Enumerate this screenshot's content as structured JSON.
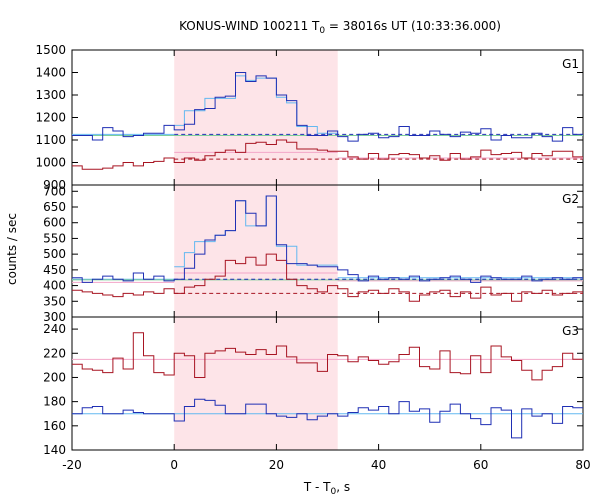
{
  "chart_data": {
    "type": "line",
    "title": "KONUS-WIND 100211 T",
    "title_sub": "0",
    "title_rest": " = 38016s UT (10:33:36.000)",
    "xlabel": "T - T",
    "xlabel_sub": "0",
    "xlabel_rest": ", s",
    "ylabel": "counts / sec",
    "xlim": [
      -20,
      80
    ],
    "x_ticks": [
      -20,
      0,
      20,
      40,
      60,
      80
    ],
    "shaded_interval": [
      0,
      32
    ],
    "colors": {
      "shade": "#fde4e8",
      "blue": "#1f2fb4",
      "lightblue": "#63b8f0",
      "red": "#a81422",
      "pink": "#f2a6c8",
      "green": "#7fcf9a"
    },
    "panels": [
      {
        "label": "G1",
        "ylim": [
          900,
          1500
        ],
        "y_ticks": [
          900,
          1000,
          1100,
          1200,
          1300,
          1400,
          1500
        ],
        "bin_edges": [
          -20,
          -18,
          -16,
          -14,
          -12,
          -10,
          -8,
          -6,
          -4,
          -2,
          0,
          2,
          4,
          6,
          8,
          10,
          12,
          14,
          16,
          18,
          20,
          22,
          24,
          26,
          28,
          30,
          32,
          34,
          36,
          38,
          40,
          42,
          44,
          46,
          48,
          50,
          52,
          54,
          56,
          58,
          60,
          62,
          64,
          66,
          68,
          70,
          72,
          74,
          76,
          78,
          80
        ],
        "high_y": [
          1120,
          1120,
          1100,
          1155,
          1140,
          1115,
          1120,
          1130,
          1130,
          1165,
          1145,
          1170,
          1235,
          1240,
          1290,
          1295,
          1400,
          1360,
          1385,
          1375,
          1300,
          1275,
          1165,
          1120,
          1120,
          1140,
          1115,
          1095,
          1125,
          1130,
          1110,
          1115,
          1160,
          1120,
          1120,
          1140,
          1125,
          1115,
          1135,
          1130,
          1150,
          1100,
          1120,
          1110,
          1110,
          1130,
          1115,
          1095,
          1155,
          1125
        ],
        "high_fit_segments": [
          [
            [
              -20,
              1125
            ],
            [
              0,
              1125
            ]
          ],
          [
            [
              0,
              1165
            ],
            [
              2,
              1165
            ],
            [
              2,
              1230
            ],
            [
              6,
              1230
            ],
            [
              6,
              1285
            ],
            [
              12,
              1285
            ],
            [
              12,
              1385
            ],
            [
              14,
              1385
            ],
            [
              14,
              1365
            ],
            [
              16,
              1365
            ],
            [
              16,
              1375
            ],
            [
              20,
              1375
            ],
            [
              20,
              1290
            ],
            [
              22,
              1290
            ],
            [
              22,
              1265
            ],
            [
              24,
              1265
            ],
            [
              24,
              1160
            ],
            [
              28,
              1160
            ],
            [
              28,
              1130
            ],
            [
              32,
              1130
            ]
          ],
          [
            [
              32,
              1120
            ],
            [
              80,
              1120
            ]
          ]
        ],
        "high_bg_dashed": 1125,
        "high_green_line": 1120,
        "low_y": [
          985,
          970,
          970,
          975,
          985,
          1000,
          985,
          1000,
          1005,
          1020,
          1000,
          1020,
          1010,
          1030,
          1045,
          1055,
          1045,
          1085,
          1090,
          1080,
          1100,
          1090,
          1060,
          1060,
          1055,
          1050,
          1050,
          1025,
          1015,
          1040,
          1015,
          1035,
          1040,
          1035,
          1020,
          1030,
          1010,
          1040,
          1015,
          1025,
          1055,
          1035,
          1040,
          1045,
          1020,
          1040,
          1030,
          1050,
          1050,
          1025
        ],
        "low_fit_segments": [
          [
            [
              0,
              1045
            ],
            [
              32,
              1045
            ]
          ],
          [
            [
              32,
              1020
            ],
            [
              80,
              1020
            ]
          ]
        ],
        "low_bg_dashed": 1015
      },
      {
        "label": "G2",
        "ylim": [
          300,
          720
        ],
        "y_ticks": [
          300,
          350,
          400,
          450,
          500,
          550,
          600,
          650,
          700
        ],
        "bin_edges": [
          -20,
          -18,
          -16,
          -14,
          -12,
          -10,
          -8,
          -6,
          -4,
          -2,
          0,
          2,
          4,
          6,
          8,
          10,
          12,
          14,
          16,
          18,
          20,
          22,
          24,
          26,
          28,
          30,
          32,
          34,
          36,
          38,
          40,
          42,
          44,
          46,
          48,
          50,
          52,
          54,
          56,
          58,
          60,
          62,
          64,
          66,
          68,
          70,
          72,
          74,
          76,
          78,
          80
        ],
        "high_y": [
          425,
          410,
          420,
          430,
          420,
          415,
          440,
          420,
          430,
          415,
          420,
          455,
          500,
          545,
          560,
          575,
          670,
          630,
          590,
          685,
          530,
          470,
          470,
          465,
          460,
          460,
          450,
          435,
          415,
          430,
          420,
          425,
          420,
          430,
          415,
          420,
          425,
          430,
          420,
          410,
          430,
          425,
          420,
          420,
          430,
          415,
          420,
          425,
          420,
          425
        ],
        "high_fit_segments": [
          [
            [
              -20,
              420
            ],
            [
              0,
              420
            ]
          ],
          [
            [
              0,
              460
            ],
            [
              2,
              460
            ],
            [
              2,
              505
            ],
            [
              4,
              505
            ],
            [
              4,
              540
            ],
            [
              8,
              540
            ],
            [
              8,
              560
            ],
            [
              10,
              560
            ],
            [
              10,
              575
            ],
            [
              12,
              575
            ],
            [
              12,
              670
            ],
            [
              14,
              670
            ],
            [
              14,
              590
            ],
            [
              18,
              590
            ],
            [
              18,
              685
            ],
            [
              20,
              685
            ],
            [
              20,
              525
            ],
            [
              24,
              525
            ],
            [
              24,
              465
            ],
            [
              32,
              465
            ]
          ],
          [
            [
              32,
              425
            ],
            [
              80,
              425
            ]
          ]
        ],
        "high_bg_dashed": 420,
        "high_green_line": 418,
        "low_y": [
          385,
          380,
          375,
          370,
          365,
          375,
          370,
          380,
          375,
          390,
          375,
          395,
          400,
          420,
          430,
          480,
          470,
          490,
          465,
          500,
          480,
          420,
          400,
          390,
          380,
          400,
          390,
          365,
          380,
          385,
          375,
          390,
          380,
          350,
          370,
          380,
          385,
          365,
          380,
          360,
          395,
          370,
          375,
          350,
          380,
          375,
          385,
          370,
          375,
          380
        ],
        "low_fit_segments": [
          [
            [
              -20,
              410
            ],
            [
              0,
              410
            ]
          ],
          [
            [
              0,
              440
            ],
            [
              32,
              440
            ]
          ],
          [
            [
              32,
              415
            ],
            [
              80,
              415
            ]
          ]
        ],
        "low_bg_dashed": 375
      },
      {
        "label": "G3",
        "ylim": [
          140,
          250
        ],
        "y_ticks": [
          140,
          160,
          180,
          200,
          220,
          240
        ],
        "bin_edges": [
          -20,
          -18,
          -16,
          -14,
          -12,
          -10,
          -8,
          -6,
          -4,
          -2,
          0,
          2,
          4,
          6,
          8,
          10,
          12,
          14,
          16,
          18,
          20,
          22,
          24,
          26,
          28,
          30,
          32,
          34,
          36,
          38,
          40,
          42,
          44,
          46,
          48,
          50,
          52,
          54,
          56,
          58,
          60,
          62,
          64,
          66,
          68,
          70,
          72,
          74,
          76,
          78,
          80
        ],
        "red_y": [
          211,
          207,
          206,
          204,
          216,
          207,
          237,
          218,
          204,
          202,
          220,
          218,
          200,
          220,
          222,
          224,
          221,
          219,
          223,
          219,
          226,
          217,
          212,
          212,
          205,
          219,
          218,
          213,
          217,
          214,
          211,
          213,
          219,
          225,
          209,
          207,
          222,
          204,
          203,
          218,
          204,
          226,
          217,
          214,
          206,
          198,
          206,
          209,
          220,
          215
        ],
        "red_fit": 215,
        "blue_y": [
          170,
          175,
          176,
          170,
          170,
          173,
          171,
          170,
          170,
          170,
          164,
          176,
          182,
          181,
          177,
          170,
          170,
          178,
          178,
          170,
          168,
          167,
          170,
          165,
          168,
          170,
          168,
          171,
          175,
          173,
          176,
          170,
          180,
          172,
          174,
          163,
          172,
          178,
          170,
          166,
          161,
          175,
          173,
          150,
          174,
          168,
          170,
          162,
          176,
          175
        ],
        "blue_fit": 170
      }
    ]
  }
}
